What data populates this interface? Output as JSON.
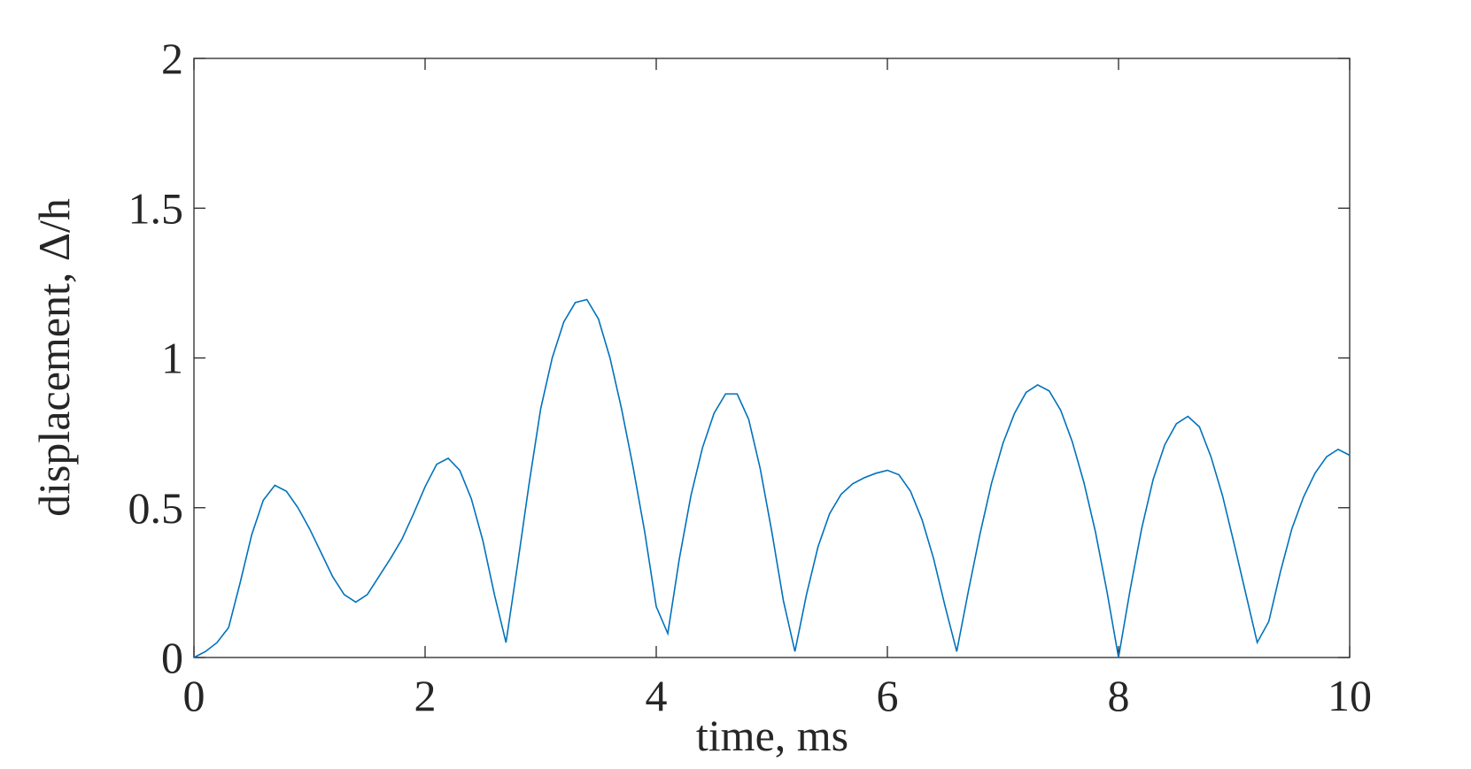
{
  "chart_data": {
    "type": "line",
    "xlabel": "time, ms",
    "ylabel": "displacement, Δ/h",
    "x": [
      0,
      0.1,
      0.2,
      0.3,
      0.4,
      0.5,
      0.6,
      0.7,
      0.8,
      0.9,
      1,
      1.1,
      1.2,
      1.3,
      1.4,
      1.5,
      1.6,
      1.7,
      1.8,
      1.9,
      2,
      2.1,
      2.2,
      2.3,
      2.4,
      2.5,
      2.6,
      2.7,
      2.8,
      2.9,
      3,
      3.1,
      3.2,
      3.3,
      3.4,
      3.5,
      3.6,
      3.7,
      3.8,
      3.9,
      4,
      4.1,
      4.2,
      4.3,
      4.4,
      4.5,
      4.6,
      4.7,
      4.8,
      4.9,
      5,
      5.1,
      5.2,
      5.3,
      5.4,
      5.5,
      5.6,
      5.7,
      5.8,
      5.9,
      6,
      6.1,
      6.2,
      6.3,
      6.4,
      6.5,
      6.6,
      6.7,
      6.8,
      6.9,
      7,
      7.1,
      7.2,
      7.3,
      7.4,
      7.5,
      7.6,
      7.7,
      7.8,
      7.9,
      8,
      8.1,
      8.2,
      8.3,
      8.4,
      8.5,
      8.6,
      8.7,
      8.8,
      8.9,
      9,
      9.1,
      9.2,
      9.3,
      9.4,
      9.5,
      9.6,
      9.7,
      9.8,
      9.9,
      10
    ],
    "series": [
      {
        "color": "#0072bd",
        "values": [
          0,
          0.02,
          0.05,
          0.1,
          0.25,
          0.41,
          0.525,
          0.575,
          0.555,
          0.5,
          0.43,
          0.35,
          0.27,
          0.21,
          0.185,
          0.21,
          0.27,
          0.33,
          0.395,
          0.48,
          0.57,
          0.645,
          0.665,
          0.625,
          0.53,
          0.39,
          0.21,
          0.05,
          0.31,
          0.58,
          0.83,
          1.0,
          1.12,
          1.185,
          1.195,
          1.13,
          1.0,
          0.83,
          0.635,
          0.42,
          0.17,
          0.08,
          0.33,
          0.54,
          0.7,
          0.815,
          0.88,
          0.88,
          0.795,
          0.63,
          0.42,
          0.19,
          0.02,
          0.21,
          0.37,
          0.48,
          0.545,
          0.58,
          0.6,
          0.615,
          0.625,
          0.61,
          0.555,
          0.46,
          0.33,
          0.17,
          0.02,
          0.22,
          0.41,
          0.58,
          0.715,
          0.815,
          0.885,
          0.91,
          0.89,
          0.825,
          0.72,
          0.585,
          0.42,
          0.22,
          0,
          0.225,
          0.43,
          0.595,
          0.71,
          0.78,
          0.805,
          0.77,
          0.67,
          0.54,
          0.38,
          0.215,
          0.05,
          0.12,
          0.285,
          0.43,
          0.535,
          0.615,
          0.67,
          0.695,
          0.675
        ]
      }
    ],
    "xlim": [
      0,
      10
    ],
    "xticks": [
      0,
      2,
      4,
      6,
      8,
      10
    ],
    "ylim": [
      0,
      2
    ],
    "yticks": [
      0,
      0.5,
      1,
      1.5,
      2
    ]
  }
}
